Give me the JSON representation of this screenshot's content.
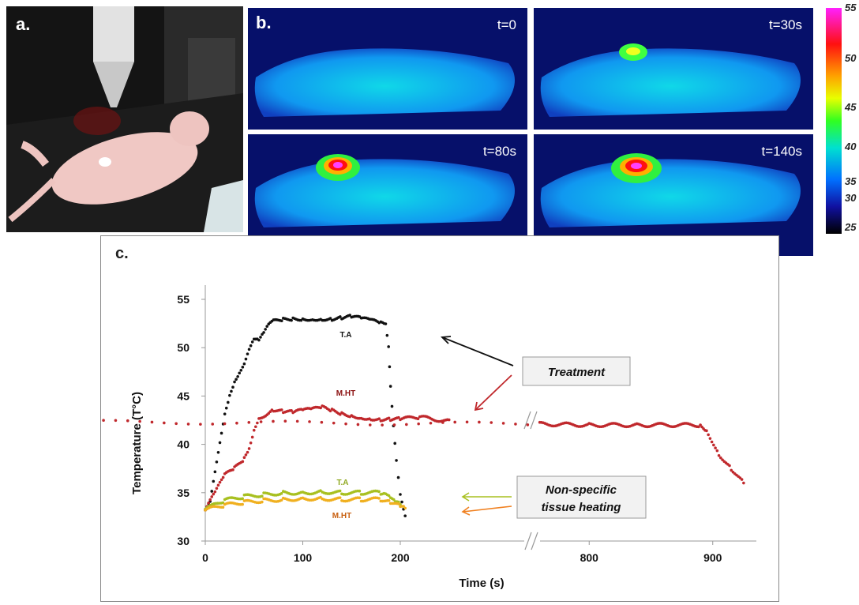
{
  "panels": {
    "a_label": "a.",
    "b_label": "b.",
    "c_label": "c.",
    "thermal_times": [
      "t=0",
      "t=30s",
      "t=80s",
      "t=140s"
    ],
    "colorbar_ticks": [
      "55",
      "50",
      "45",
      "40",
      "35",
      "30",
      "25"
    ]
  },
  "chart_data": {
    "type": "scatter",
    "xlabel": "Time (s)",
    "ylabel": "Temperature (T°C)",
    "ylim": [
      30,
      55
    ],
    "y_ticks": [
      30,
      35,
      40,
      45,
      50,
      55
    ],
    "x_ticks": [
      "0",
      "100",
      "200",
      "800",
      "900"
    ],
    "axis_break": "after 250 s",
    "annotations": {
      "treatment": "Treatment",
      "nonspecific_line1": "Non-specific",
      "nonspecific_line2": "tissue heating"
    },
    "series": [
      {
        "name": "T.A",
        "color": "#111111",
        "points": [
          [
            0,
            33.2
          ],
          [
            5,
            34
          ],
          [
            10,
            37
          ],
          [
            15,
            40
          ],
          [
            20,
            43
          ],
          [
            25,
            45
          ],
          [
            30,
            46.5
          ],
          [
            35,
            47.5
          ],
          [
            40,
            48.5
          ],
          [
            45,
            50
          ],
          [
            50,
            51
          ],
          [
            55,
            50.8
          ],
          [
            60,
            51.5
          ],
          [
            65,
            52.3
          ],
          [
            70,
            52.7
          ],
          [
            80,
            52.9
          ],
          [
            90,
            53
          ],
          [
            100,
            53
          ],
          [
            110,
            53
          ],
          [
            120,
            53
          ],
          [
            130,
            53
          ],
          [
            140,
            53.1
          ],
          [
            150,
            53.2
          ],
          [
            160,
            53
          ],
          [
            170,
            52.8
          ],
          [
            180,
            52.5
          ],
          [
            185,
            52.3
          ],
          [
            188,
            50
          ],
          [
            190,
            46
          ],
          [
            193,
            42
          ],
          [
            196,
            38.5
          ],
          [
            200,
            35
          ],
          [
            205,
            32.6
          ]
        ]
      },
      {
        "name": "M.HT",
        "color": "#c0282c",
        "points": [
          [
            0,
            33.2
          ],
          [
            10,
            35
          ],
          [
            20,
            36.8
          ],
          [
            30,
            37.5
          ],
          [
            40,
            38.5
          ],
          [
            45,
            39.5
          ],
          [
            50,
            41.5
          ],
          [
            55,
            42.8
          ],
          [
            60,
            43
          ],
          [
            70,
            43.6
          ],
          [
            80,
            43.4
          ],
          [
            90,
            43.3
          ],
          [
            100,
            43.5
          ],
          [
            110,
            43.6
          ],
          [
            120,
            43.8
          ],
          [
            130,
            43.5
          ],
          [
            140,
            43.2
          ],
          [
            150,
            43
          ],
          [
            160,
            42.8
          ],
          [
            170,
            42.7
          ],
          [
            180,
            42.6
          ],
          [
            190,
            42.6
          ],
          [
            200,
            42.6
          ],
          [
            220,
            42.8
          ],
          [
            250,
            42.4
          ],
          [
            760,
            42.1
          ],
          [
            800,
            42
          ],
          [
            840,
            42
          ],
          [
            890,
            42
          ],
          [
            895,
            41.5
          ],
          [
            905,
            39
          ],
          [
            915,
            37.5
          ],
          [
            925,
            36
          ]
        ]
      },
      {
        "name": "T.A",
        "color": "#a8c020",
        "points": [
          [
            0,
            33.3
          ],
          [
            20,
            34.2
          ],
          [
            40,
            34.6
          ],
          [
            60,
            34.8
          ],
          [
            80,
            35
          ],
          [
            100,
            35
          ],
          [
            120,
            35.1
          ],
          [
            140,
            35
          ],
          [
            160,
            35
          ],
          [
            180,
            35
          ],
          [
            185,
            35
          ],
          [
            190,
            34.5
          ],
          [
            195,
            34
          ],
          [
            200,
            33.8
          ]
        ]
      },
      {
        "name": "M.HT",
        "color": "#f0b020",
        "points": [
          [
            0,
            33.2
          ],
          [
            20,
            33.7
          ],
          [
            40,
            34
          ],
          [
            60,
            34.2
          ],
          [
            80,
            34.3
          ],
          [
            100,
            34.4
          ],
          [
            120,
            34.4
          ],
          [
            140,
            34.3
          ],
          [
            160,
            34.3
          ],
          [
            180,
            34.3
          ],
          [
            190,
            34
          ],
          [
            200,
            33.6
          ],
          [
            205,
            33.4
          ]
        ]
      }
    ]
  }
}
